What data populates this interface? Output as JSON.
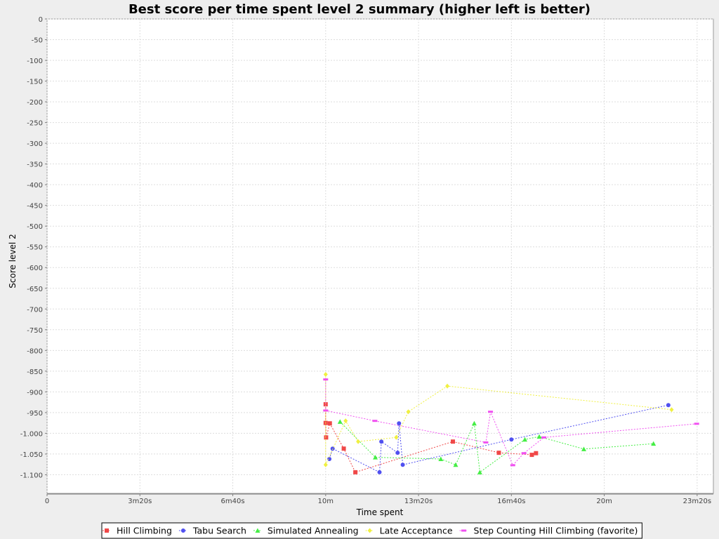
{
  "chart_data": {
    "type": "line",
    "title": "Best score per time spent level 2 summary (higher left is better)",
    "xlabel": "Time spent",
    "ylabel": "Score level 2",
    "x_unit": "seconds",
    "xlim": [
      0,
      1435
    ],
    "ylim": [
      -1145,
      0
    ],
    "x_ticks": [
      {
        "value": 0,
        "label": "0"
      },
      {
        "value": 200,
        "label": "3m20s"
      },
      {
        "value": 400,
        "label": "6m40s"
      },
      {
        "value": 600,
        "label": "10m"
      },
      {
        "value": 800,
        "label": "13m20s"
      },
      {
        "value": 1000,
        "label": "16m40s"
      },
      {
        "value": 1200,
        "label": "20m"
      },
      {
        "value": 1400,
        "label": "23m20s"
      }
    ],
    "y_ticks": [
      {
        "value": 0,
        "label": "0"
      },
      {
        "value": -50,
        "label": "-50"
      },
      {
        "value": -100,
        "label": "-100"
      },
      {
        "value": -150,
        "label": "-150"
      },
      {
        "value": -200,
        "label": "-200"
      },
      {
        "value": -250,
        "label": "-250"
      },
      {
        "value": -300,
        "label": "-300"
      },
      {
        "value": -350,
        "label": "-350"
      },
      {
        "value": -400,
        "label": "-400"
      },
      {
        "value": -450,
        "label": "-450"
      },
      {
        "value": -500,
        "label": "-500"
      },
      {
        "value": -550,
        "label": "-550"
      },
      {
        "value": -600,
        "label": "-600"
      },
      {
        "value": -650,
        "label": "-650"
      },
      {
        "value": -700,
        "label": "-700"
      },
      {
        "value": -750,
        "label": "-750"
      },
      {
        "value": -800,
        "label": "-800"
      },
      {
        "value": -850,
        "label": "-850"
      },
      {
        "value": -900,
        "label": "-900"
      },
      {
        "value": -950,
        "label": "-950"
      },
      {
        "value": -1000,
        "label": "-1.000"
      },
      {
        "value": -1050,
        "label": "-1.050"
      },
      {
        "value": -1100,
        "label": "-1.100"
      }
    ],
    "grid": true,
    "legend_position": "bottom",
    "series": [
      {
        "name": "Hill Climbing",
        "color": "#f04848",
        "marker": "square",
        "points": [
          [
            600,
            -930
          ],
          [
            600,
            -975
          ],
          [
            601,
            -1010
          ],
          [
            609,
            -976
          ],
          [
            639,
            -1037
          ],
          [
            664,
            -1094
          ],
          [
            874,
            -1020
          ],
          [
            973,
            -1047
          ],
          [
            1044,
            -1052
          ],
          [
            1053,
            -1048
          ]
        ]
      },
      {
        "name": "Tabu Search",
        "color": "#5050f0",
        "marker": "circle",
        "points": [
          [
            608,
            -1062
          ],
          [
            615,
            -1037
          ],
          [
            716,
            -1094
          ],
          [
            720,
            -1020
          ],
          [
            755,
            -1047
          ],
          [
            758,
            -976
          ],
          [
            766,
            -1076
          ],
          [
            1000,
            -1015
          ],
          [
            1338,
            -932
          ]
        ]
      },
      {
        "name": "Simulated Annealing",
        "color": "#44ee44",
        "marker": "triangle",
        "points": [
          [
            631,
            -972
          ],
          [
            707,
            -1058
          ],
          [
            848,
            -1062
          ],
          [
            880,
            -1076
          ],
          [
            920,
            -976
          ],
          [
            932,
            -1094
          ],
          [
            1029,
            -1015
          ],
          [
            1060,
            -1008
          ],
          [
            1156,
            -1038
          ],
          [
            1306,
            -1025
          ]
        ]
      },
      {
        "name": "Late Acceptance",
        "color": "#f0f040",
        "marker": "diamond",
        "points": [
          [
            600,
            -858
          ],
          [
            600,
            -1076
          ],
          [
            643,
            -970
          ],
          [
            670,
            -1020
          ],
          [
            752,
            -1010
          ],
          [
            778,
            -948
          ],
          [
            862,
            -886
          ],
          [
            1345,
            -943
          ]
        ]
      },
      {
        "name": "Step Counting Hill Climbing (favorite)",
        "color": "#f050f0",
        "marker": "rect",
        "points": [
          [
            600,
            -870
          ],
          [
            600,
            -945
          ],
          [
            706,
            -970
          ],
          [
            945,
            -1022
          ],
          [
            955,
            -948
          ],
          [
            1003,
            -1077
          ],
          [
            1027,
            -1048
          ],
          [
            1070,
            -1010
          ],
          [
            1399,
            -977
          ]
        ]
      }
    ]
  }
}
